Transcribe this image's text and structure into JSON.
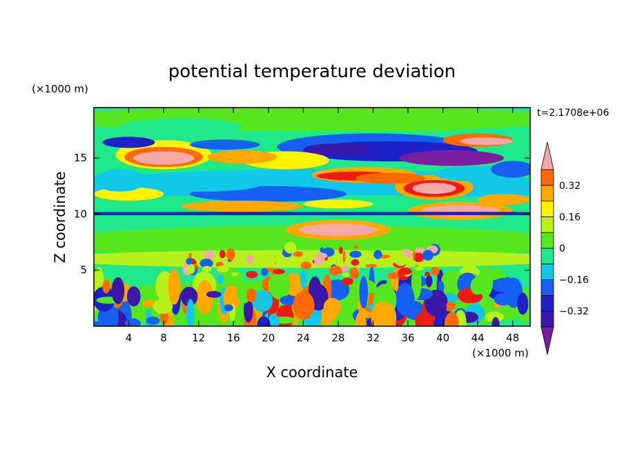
{
  "chart_data": {
    "type": "heatmap",
    "title": "potential temperature deviation",
    "xlabel": "X coordinate",
    "ylabel": "Z coordinate",
    "x_unit": "(×1000 m)",
    "y_unit": "(×1000 m)",
    "time_label": "t=2.1708e+06",
    "xlim": [
      0,
      50
    ],
    "ylim": [
      0,
      19.5
    ],
    "x_ticks": [
      4,
      8,
      12,
      16,
      20,
      24,
      28,
      32,
      36,
      40,
      44,
      48
    ],
    "y_ticks": [
      5,
      10,
      15
    ],
    "colorbar": {
      "levels": [
        -0.4,
        -0.32,
        -0.24,
        -0.16,
        -0.08,
        0,
        0.08,
        0.16,
        0.24,
        0.32,
        0.4
      ],
      "labels": [
        "0.32",
        "0.16",
        "0",
        "−0.16",
        "−0.32"
      ],
      "label_values": [
        0.32,
        0.16,
        0,
        -0.16,
        -0.32
      ],
      "colors_low_to_high": [
        "#7a1fa2",
        "#3a18a8",
        "#1e20c8",
        "#1560f0",
        "#12c8e8",
        "#1ee88a",
        "#55e61e",
        "#b8f01a",
        "#fff300",
        "#ffa800",
        "#ff6a00",
        "#f01a14",
        "#f4a8a8"
      ]
    },
    "features": [
      {
        "x": [
          3,
          12
        ],
        "z": [
          14,
          16
        ],
        "value": 0.45
      },
      {
        "x": [
          34,
          48
        ],
        "z": [
          13.5,
          16
        ],
        "value": -0.45
      },
      {
        "x": [
          22,
          42
        ],
        "z": [
          14.5,
          17
        ],
        "value": -0.3
      },
      {
        "x": [
          36,
          42
        ],
        "z": [
          11.5,
          13.2
        ],
        "value": 0.42
      },
      {
        "x": [
          26,
          36
        ],
        "z": [
          12.5,
          13.6
        ],
        "value": 0.3
      },
      {
        "x": [
          24,
          32
        ],
        "z": [
          8,
          9.2
        ],
        "value": 0.42
      },
      {
        "x": [
          38,
          46
        ],
        "z": [
          9.5,
          10.8
        ],
        "value": 0.42
      },
      {
        "x": [
          0,
          50
        ],
        "z": [
          9.9,
          10.2
        ],
        "value": -0.2
      },
      {
        "x": [
          2,
          50
        ],
        "z": [
          11,
          13.5
        ],
        "value": -0.12
      },
      {
        "x": [
          0,
          50
        ],
        "z": [
          0,
          4
        ],
        "value": "mixed"
      }
    ]
  }
}
